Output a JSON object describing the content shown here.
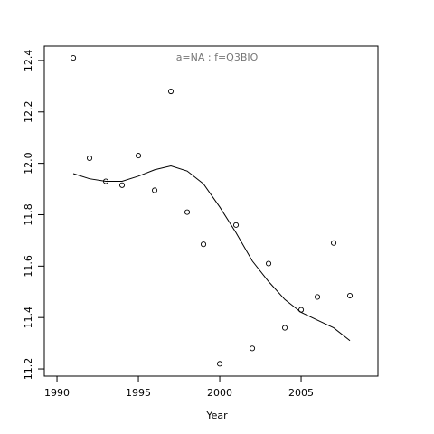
{
  "chart_data": {
    "type": "scatter",
    "title": "a=NA  :  f=Q3BIO",
    "x_label": "Year",
    "x": [
      1991,
      1992,
      1993,
      1994,
      1995,
      1996,
      1997,
      1998,
      1999,
      2000,
      2001,
      2002,
      2003,
      2004,
      2005,
      2006,
      2007,
      2008
    ],
    "series": [
      {
        "style": "points",
        "color": "#000000",
        "values": [
          12.41,
          12.02,
          11.93,
          11.915,
          12.03,
          11.895,
          12.28,
          11.81,
          11.685,
          11.22,
          11.76,
          11.28,
          11.61,
          11.36,
          11.43,
          11.48,
          11.69,
          11.485
        ]
      },
      {
        "style": "line",
        "color": "#000000",
        "values": [
          11.96,
          11.94,
          11.93,
          11.93,
          11.95,
          11.975,
          11.99,
          11.97,
          11.92,
          11.83,
          11.73,
          11.62,
          11.54,
          11.47,
          11.42,
          11.39,
          11.36,
          11.31
        ]
      }
    ],
    "xlim": [
      1989.22,
      2009.72
    ],
    "ylim": [
      11.172,
      12.456
    ],
    "xticks": [
      1990,
      1995,
      2000,
      2005
    ],
    "yticks": [
      11.2,
      11.4,
      11.6,
      11.8,
      {
        "value": 12,
        "label": "12.0"
      },
      12.2,
      12.4
    ],
    "grid": false
  }
}
